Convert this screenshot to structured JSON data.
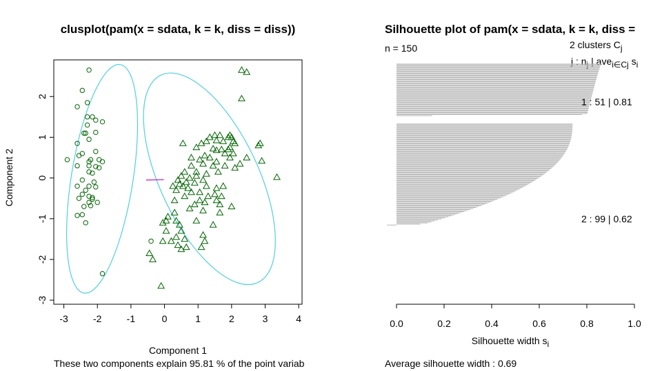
{
  "colors": {
    "ellipse": "#4ECFE0",
    "points": "#006400",
    "link": "#C000C0",
    "bars": "#B4B4B4",
    "axis": "#000000"
  },
  "chart_data": [
    {
      "type": "scatter",
      "title": "clusplot(pam(x = sdata, k = k, diss = diss))",
      "xlabel": "Component 1",
      "ylabel": "Component 2",
      "subtitle": "These two components explain 95.81 % of the point variab",
      "xlim": [
        -3.3,
        4.1
      ],
      "ylim": [
        -3.1,
        2.9
      ],
      "x_ticks": [
        -3,
        -2,
        -1,
        0,
        1,
        2,
        3,
        4
      ],
      "y_ticks": [
        -3,
        -2,
        -1,
        0,
        1,
        2
      ],
      "x_tick_labels": [
        "-3",
        "-2",
        "-1",
        "0",
        "1",
        "2",
        "3",
        "4"
      ],
      "y_tick_labels": [
        "-3",
        "-2",
        "-1",
        "0",
        "1",
        "2"
      ],
      "ellipses": [
        {
          "cluster": 1,
          "center": [
            -1.86,
            -0.02
          ],
          "semi_axes": [
            0.92,
            2.84
          ],
          "angle_deg": 9
        },
        {
          "cluster": 2,
          "center": [
            1.34,
            -0.02
          ],
          "semi_axes": [
            1.47,
            2.81
          ],
          "angle_deg": -25
        }
      ],
      "link": {
        "from": [
          -0.55,
          -0.05
        ],
        "to": [
          -0.02,
          -0.04
        ]
      },
      "series": [
        {
          "cluster": 1,
          "marker": "circle",
          "points": [
            [
              -2.25,
              2.65
            ],
            [
              -2.45,
              2.15
            ],
            [
              -2.3,
              1.85
            ],
            [
              -2.6,
              1.75
            ],
            [
              -2.15,
              1.5
            ],
            [
              -2.3,
              1.5
            ],
            [
              -2.05,
              1.42
            ],
            [
              -2.3,
              1.3
            ],
            [
              -1.85,
              1.38
            ],
            [
              -2.4,
              1.1
            ],
            [
              -2.35,
              1.1
            ],
            [
              -2.05,
              1.12
            ],
            [
              -2.25,
              0.95
            ],
            [
              -2.6,
              0.85
            ],
            [
              -2.45,
              0.6
            ],
            [
              -2.05,
              0.65
            ],
            [
              -2.55,
              0.55
            ],
            [
              -2.2,
              0.45
            ],
            [
              -2.25,
              0.4
            ],
            [
              -1.95,
              0.45
            ],
            [
              -1.85,
              0.4
            ],
            [
              -2.25,
              0.3
            ],
            [
              -2.05,
              0.28
            ],
            [
              -2.9,
              0.45
            ],
            [
              -2.6,
              0.3
            ],
            [
              -1.95,
              0.25
            ],
            [
              -2.25,
              0.15
            ],
            [
              -2.15,
              0.12
            ],
            [
              -2.45,
              -0.05
            ],
            [
              -2.6,
              -0.2
            ],
            [
              -2.25,
              -0.2
            ],
            [
              -2.05,
              -0.22
            ],
            [
              -2.35,
              -0.3
            ],
            [
              -2.45,
              -0.4
            ],
            [
              -2.25,
              -0.45
            ],
            [
              -2.15,
              -0.48
            ],
            [
              -2.15,
              -0.52
            ],
            [
              -2.55,
              -0.5
            ],
            [
              -2.25,
              -0.6
            ],
            [
              -2.0,
              -0.6
            ],
            [
              -2.4,
              -0.7
            ],
            [
              -2.2,
              -0.68
            ],
            [
              -2.6,
              -0.92
            ],
            [
              -2.45,
              -0.9
            ],
            [
              -2.35,
              -1.1
            ],
            [
              -1.85,
              -2.35
            ],
            [
              -0.4,
              -1.55
            ],
            [
              -2.1,
              -0.1
            ]
          ]
        },
        {
          "cluster": 2,
          "marker": "triangle",
          "points": [
            [
              2.3,
              2.65
            ],
            [
              2.45,
              2.6
            ],
            [
              2.3,
              1.95
            ],
            [
              2.85,
              0.85
            ],
            [
              2.8,
              0.8
            ],
            [
              2.9,
              0.42
            ],
            [
              3.35,
              0.02
            ],
            [
              2.0,
              1.0
            ],
            [
              1.9,
              1.0
            ],
            [
              1.65,
              1.05
            ],
            [
              1.5,
              1.05
            ],
            [
              1.35,
              1.0
            ],
            [
              2.05,
              0.9
            ],
            [
              1.75,
              0.9
            ],
            [
              1.55,
              0.92
            ],
            [
              1.25,
              0.9
            ],
            [
              1.1,
              0.85
            ],
            [
              0.55,
              0.85
            ],
            [
              0.95,
              0.75
            ],
            [
              1.45,
              0.72
            ],
            [
              1.9,
              0.7
            ],
            [
              1.95,
              0.75
            ],
            [
              1.55,
              0.68
            ],
            [
              1.7,
              0.7
            ],
            [
              1.8,
              0.6
            ],
            [
              2.05,
              0.6
            ],
            [
              1.2,
              0.55
            ],
            [
              0.8,
              0.5
            ],
            [
              1.35,
              0.5
            ],
            [
              1.95,
              0.5
            ],
            [
              2.45,
              0.5
            ],
            [
              2.25,
              0.35
            ],
            [
              1.05,
              0.45
            ],
            [
              1.55,
              0.4
            ],
            [
              1.15,
              0.35
            ],
            [
              0.8,
              0.3
            ],
            [
              1.45,
              0.3
            ],
            [
              1.8,
              0.3
            ],
            [
              2.1,
              0.25
            ],
            [
              0.95,
              0.15
            ],
            [
              1.6,
              0.15
            ],
            [
              0.6,
              0.15
            ],
            [
              1.25,
              0.1
            ],
            [
              0.5,
              0.05
            ],
            [
              0.95,
              0.05
            ],
            [
              0.75,
              0.0
            ],
            [
              1.15,
              -0.05
            ],
            [
              0.4,
              -0.05
            ],
            [
              0.65,
              -0.1
            ],
            [
              0.45,
              -0.15
            ],
            [
              0.9,
              -0.12
            ],
            [
              0.55,
              -0.2
            ],
            [
              0.25,
              -0.2
            ],
            [
              0.7,
              -0.25
            ],
            [
              1.25,
              -0.2
            ],
            [
              1.55,
              -0.25
            ],
            [
              1.75,
              -0.2
            ],
            [
              0.35,
              -0.3
            ],
            [
              0.8,
              -0.35
            ],
            [
              1.05,
              -0.35
            ],
            [
              1.5,
              -0.4
            ],
            [
              0.6,
              -0.45
            ],
            [
              1.3,
              -0.45
            ],
            [
              1.7,
              -0.45
            ],
            [
              0.3,
              -0.55
            ],
            [
              1.05,
              -0.55
            ],
            [
              1.2,
              -0.6
            ],
            [
              0.9,
              -0.65
            ],
            [
              1.55,
              -0.55
            ],
            [
              1.65,
              -0.65
            ],
            [
              2.0,
              -0.7
            ],
            [
              0.75,
              -0.75
            ],
            [
              1.15,
              -0.8
            ],
            [
              1.65,
              -0.85
            ],
            [
              0.3,
              -0.85
            ],
            [
              0.05,
              -1.05
            ],
            [
              0.35,
              -1.05
            ],
            [
              0.45,
              -1.15
            ],
            [
              1.45,
              -1.15
            ],
            [
              0.05,
              -1.3
            ],
            [
              0.5,
              -1.3
            ],
            [
              0.35,
              -1.45
            ],
            [
              0.6,
              -1.5
            ],
            [
              1.15,
              -1.4
            ],
            [
              1.2,
              -1.55
            ],
            [
              0.2,
              -1.55
            ],
            [
              -0.05,
              -1.55
            ],
            [
              0.4,
              -1.65
            ],
            [
              0.65,
              -1.7
            ],
            [
              1.1,
              -1.7
            ],
            [
              0.5,
              -1.75
            ],
            [
              -0.45,
              -1.85
            ],
            [
              -0.35,
              -2.0
            ],
            [
              -0.1,
              -2.65
            ],
            [
              0.1,
              -0.95
            ],
            [
              -0.05,
              -1.1
            ],
            [
              0.95,
              -1.05
            ],
            [
              1.95,
              1.05
            ],
            [
              2.1,
              0.85
            ]
          ]
        }
      ]
    },
    {
      "type": "bar",
      "orientation": "horizontal",
      "title": "Silhouette plot of pam(x = sdata, k = k, diss =",
      "xlabel": "Silhouette width s",
      "xlabel_sub": "i",
      "xlim": [
        0,
        1
      ],
      "x_ticks": [
        0,
        0.2,
        0.4,
        0.6,
        0.8,
        1
      ],
      "x_tick_labels": [
        "0.0",
        "0.2",
        "0.4",
        "0.6",
        "0.8",
        "1.0"
      ],
      "n_label": "n = 150",
      "legend": {
        "line1": "2  clusters  C",
        "line1_sub": "j",
        "line2_a": "j :  n",
        "line2_a_sub": "j",
        "line2_b": " | ave",
        "line2_b_sub": "i∈Cj",
        "line2_c": "  s",
        "line2_c_sub": "i"
      },
      "cluster_labels": [
        {
          "cluster": 1,
          "text": "1 :   51  |  0.81"
        },
        {
          "cluster": 2,
          "text": "2 :   99  |  0.62"
        }
      ],
      "average_text": "Average silhouette width :  0.69",
      "clusters": [
        {
          "cluster": 1,
          "n": 51,
          "avg": 0.81,
          "max": 0.86,
          "min": 0.15
        },
        {
          "cluster": 2,
          "n": 99,
          "avg": 0.62,
          "max": 0.74,
          "min": -0.04
        }
      ]
    }
  ]
}
